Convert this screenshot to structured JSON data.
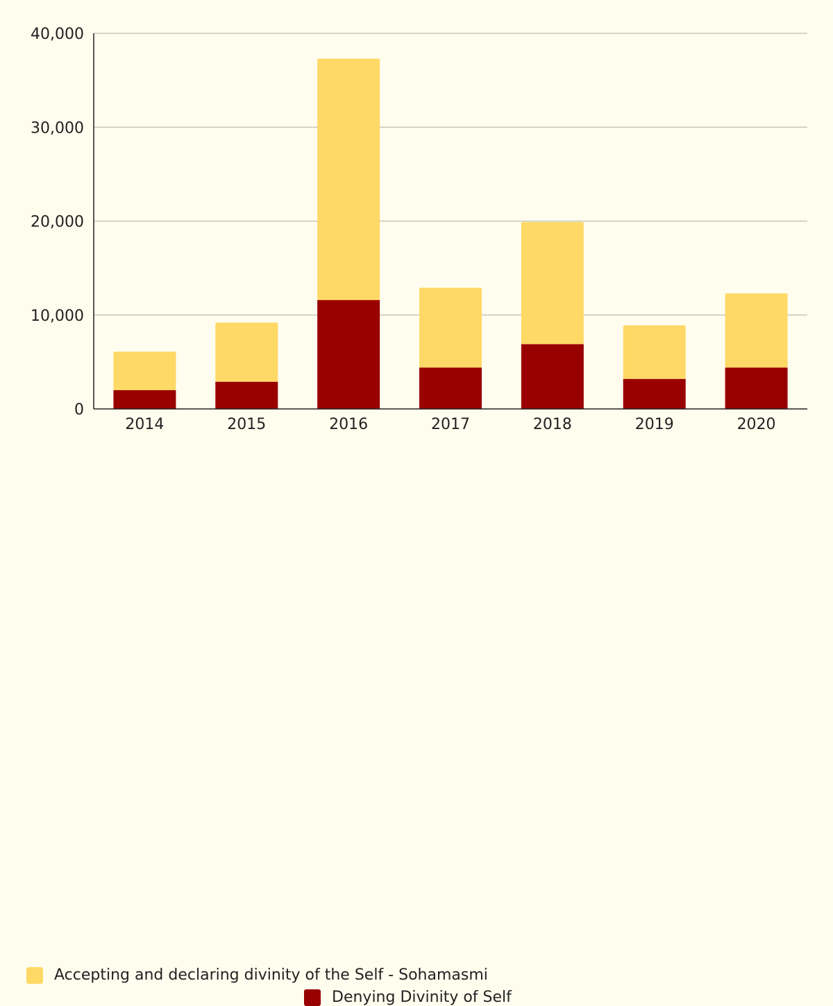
{
  "chart_data": {
    "type": "bar",
    "stacked": true,
    "categories": [
      "2014",
      "2015",
      "2016",
      "2017",
      "2018",
      "2019",
      "2020"
    ],
    "series": [
      {
        "name": "Denying Divinity of Self",
        "color": "#990000",
        "values": [
          2000,
          2900,
          11600,
          4400,
          6900,
          3200,
          4400
        ]
      },
      {
        "name": "Accepting and declaring divinity of the Self - Sohamasmi",
        "color": "#ffd966",
        "values": [
          4100,
          6300,
          25700,
          8500,
          13000,
          5700,
          7900
        ]
      }
    ],
    "ylim": [
      0,
      40000
    ],
    "yticks": [
      0,
      10000,
      20000,
      30000,
      40000
    ],
    "ytick_labels": [
      "0",
      "10,000",
      "20,000",
      "30,000",
      "40,000"
    ],
    "title": "",
    "xlabel": "",
    "ylabel": "",
    "grid": true,
    "legend_position": "bottom",
    "legend_order": [
      1,
      0
    ]
  }
}
